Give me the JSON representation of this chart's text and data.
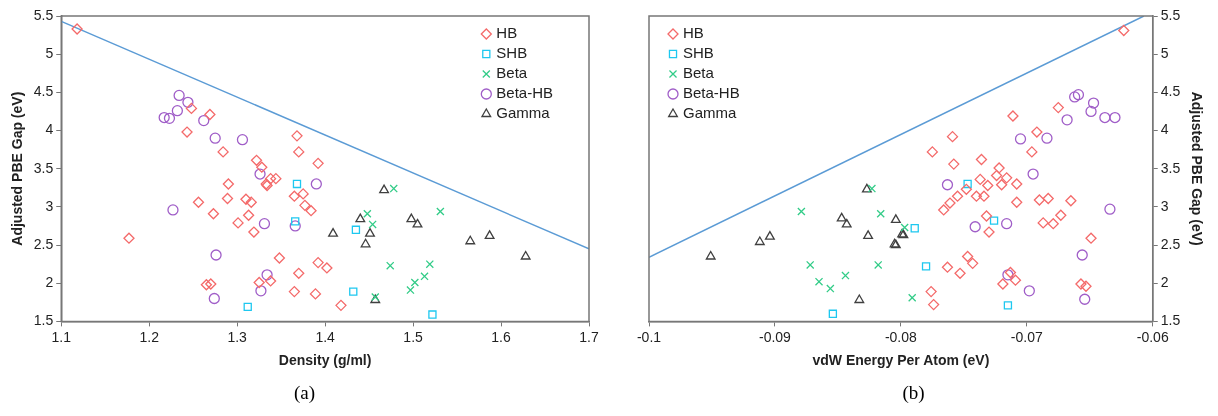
{
  "chart_data": [
    {
      "type": "scatter",
      "xlabel": "Density (g/ml)",
      "ylabel": "Adjusted PBE Gap (eV)",
      "xlim": [
        1.1,
        1.7
      ],
      "xticks": [
        1.1,
        1.2,
        1.3,
        1.4,
        1.5,
        1.6,
        1.7
      ],
      "ylim": [
        1.5,
        5.5
      ],
      "yticks": [
        1.5,
        2,
        2.5,
        3,
        3.5,
        4,
        4.5,
        5,
        5.5
      ],
      "grid": false,
      "legend": "top right",
      "annotations": [
        "(a)"
      ],
      "series": [
        {
          "name": "HB",
          "color": "#f46a6a",
          "marker": "diamond",
          "x": [
            1.118,
            1.177,
            1.243,
            1.248,
            1.269,
            1.284,
            1.256,
            1.273,
            1.29,
            1.289,
            1.301,
            1.31,
            1.316,
            1.313,
            1.319,
            1.322,
            1.328,
            1.333,
            1.338,
            1.344,
            1.334,
            1.348,
            1.325,
            1.338,
            1.265,
            1.27,
            1.368,
            1.37,
            1.392,
            1.365,
            1.375,
            1.377,
            1.384,
            1.37,
            1.365,
            1.389,
            1.392,
            1.402,
            1.418
          ],
          "values": [
            5.33,
            2.59,
            3.98,
            4.29,
            4.21,
            3.72,
            3.06,
            2.91,
            3.3,
            3.11,
            2.79,
            3.1,
            3.06,
            2.89,
            2.67,
            3.61,
            3.52,
            3.3,
            3.37,
            3.37,
            3.28,
            2.33,
            2.01,
            2.03,
            1.98,
            1.99,
            3.93,
            3.72,
            3.57,
            3.14,
            3.17,
            3.02,
            2.95,
            2.13,
            1.89,
            1.86,
            2.27,
            2.2,
            1.71
          ]
        },
        {
          "name": "SHB",
          "color": "#1ec8f0",
          "marker": "square",
          "x": [
            1.368,
            1.366,
            1.312,
            1.435,
            1.432,
            1.522
          ],
          "values": [
            3.3,
            2.81,
            1.69,
            2.7,
            1.89,
            1.59
          ]
        },
        {
          "name": "Beta",
          "color": "#33cc88",
          "marker": "cross",
          "x": [
            1.478,
            1.448,
            1.454,
            1.531,
            1.474,
            1.519,
            1.513,
            1.502,
            1.497,
            1.457
          ],
          "values": [
            3.24,
            2.91,
            2.77,
            2.94,
            2.23,
            2.25,
            2.09,
            2.01,
            1.91,
            1.82
          ]
        },
        {
          "name": "Beta-HB",
          "color": "#a05ec8",
          "marker": "circle",
          "x": [
            1.234,
            1.244,
            1.217,
            1.223,
            1.232,
            1.262,
            1.275,
            1.306,
            1.326,
            1.227,
            1.331,
            1.366,
            1.276,
            1.334,
            1.327,
            1.274,
            1.39
          ],
          "values": [
            4.46,
            4.37,
            4.17,
            4.16,
            4.26,
            4.13,
            3.9,
            3.88,
            3.43,
            2.96,
            2.78,
            2.75,
            2.37,
            2.11,
            1.9,
            1.8,
            3.3
          ]
        },
        {
          "name": "Gamma",
          "color": "#404040",
          "marker": "triangle",
          "x": [
            1.467,
            1.44,
            1.409,
            1.451,
            1.446,
            1.498,
            1.505,
            1.565,
            1.587,
            1.628,
            1.457
          ],
          "values": [
            3.22,
            2.84,
            2.65,
            2.65,
            2.51,
            2.84,
            2.77,
            2.55,
            2.62,
            2.35,
            1.78
          ]
        },
        {
          "type": "line",
          "color": "#5b9bd5",
          "marker": "none",
          "x": [
            1.1,
            1.7
          ],
          "values": [
            5.43,
            2.45
          ]
        }
      ]
    },
    {
      "type": "scatter",
      "xlabel": "vdW Energy Per Atom (eV)",
      "y2label": "Adjusted PBE Gap (eV)",
      "xlim": [
        -0.1,
        -0.06
      ],
      "xticks": [
        -0.1,
        -0.09,
        -0.08,
        -0.07,
        -0.06
      ],
      "y2lim": [
        1.5,
        5.5
      ],
      "y2ticks": [
        1.5,
        2,
        2.5,
        3,
        3.5,
        4,
        4.5,
        5,
        5.5
      ],
      "grid": false,
      "legend": "top left",
      "annotations": [
        "(b)"
      ],
      "series": [
        {
          "name": "HB",
          "color": "#f46a6a",
          "marker": "diamond",
          "axis": "y2",
          "x": [
            -0.0623,
            -0.0775,
            -0.0759,
            -0.0758,
            -0.0766,
            -0.0761,
            -0.0755,
            -0.0748,
            -0.074,
            -0.0734,
            -0.0736,
            -0.0737,
            -0.0731,
            -0.0722,
            -0.0724,
            -0.0716,
            -0.072,
            -0.0708,
            -0.0708,
            -0.0732,
            -0.073,
            -0.0711,
            -0.0692,
            -0.0696,
            -0.0675,
            -0.069,
            -0.0683,
            -0.0665,
            -0.0687,
            -0.0679,
            -0.0673,
            -0.0649,
            -0.0657,
            -0.0653,
            -0.0763,
            -0.0753,
            -0.0747,
            -0.0743,
            -0.0776,
            -0.0774,
            -0.0719,
            -0.0709,
            -0.0713
          ],
          "values": [
            5.31,
            3.72,
            3.92,
            3.56,
            2.96,
            3.05,
            3.14,
            3.23,
            3.14,
            3.14,
            3.62,
            3.36,
            3.28,
            3.51,
            3.41,
            3.38,
            3.29,
            3.3,
            3.06,
            2.88,
            2.67,
            4.19,
            3.98,
            3.72,
            4.3,
            3.09,
            3.11,
            3.08,
            2.79,
            2.78,
            2.89,
            2.59,
            1.99,
            1.96,
            2.21,
            2.13,
            2.35,
            2.26,
            1.89,
            1.72,
            1.99,
            2.04,
            2.14
          ]
        },
        {
          "name": "SHB",
          "color": "#1ec8f0",
          "marker": "square",
          "axis": "y2",
          "x": [
            -0.0854,
            -0.0789,
            -0.078,
            -0.0747,
            -0.0726,
            -0.0715
          ],
          "values": [
            1.6,
            2.72,
            2.22,
            3.3,
            2.82,
            1.71
          ]
        },
        {
          "name": "Beta",
          "color": "#33cc88",
          "marker": "cross",
          "axis": "y2",
          "x": [
            -0.0879,
            -0.0823,
            -0.0816,
            -0.0872,
            -0.0865,
            -0.0856,
            -0.0844,
            -0.0818,
            -0.0797,
            -0.0791
          ],
          "values": [
            2.94,
            3.24,
            2.91,
            2.24,
            2.02,
            1.93,
            2.1,
            2.24,
            2.73,
            1.81
          ]
        },
        {
          "name": "Beta-HB",
          "color": "#a05ec8",
          "marker": "circle",
          "axis": "y2",
          "x": [
            -0.0763,
            -0.0741,
            -0.0716,
            -0.0705,
            -0.0684,
            -0.0695,
            -0.0668,
            -0.0662,
            -0.0659,
            -0.0647,
            -0.0649,
            -0.0638,
            -0.063,
            -0.0634,
            -0.0656,
            -0.0715,
            -0.0698,
            -0.0654
          ],
          "values": [
            3.29,
            2.74,
            2.78,
            3.89,
            3.9,
            3.43,
            4.14,
            4.44,
            4.47,
            4.36,
            4.25,
            4.17,
            4.17,
            2.97,
            2.37,
            2.11,
            1.9,
            1.79
          ]
        },
        {
          "name": "Gamma",
          "color": "#404040",
          "marker": "triangle",
          "axis": "y2",
          "x": [
            -0.0951,
            -0.0912,
            -0.0904,
            -0.0827,
            -0.0847,
            -0.0843,
            -0.0826,
            -0.0804,
            -0.0804,
            -0.0799,
            -0.0833,
            -0.0798,
            -0.0805
          ],
          "values": [
            2.35,
            2.54,
            2.61,
            3.23,
            2.85,
            2.77,
            2.62,
            2.83,
            2.5,
            2.64,
            1.78,
            2.63,
            2.51
          ]
        },
        {
          "type": "line",
          "color": "#5b9bd5",
          "marker": "none",
          "axis": "y2",
          "x": [
            -0.1,
            -0.0607
          ],
          "values": [
            2.34,
            5.5
          ]
        }
      ]
    }
  ]
}
